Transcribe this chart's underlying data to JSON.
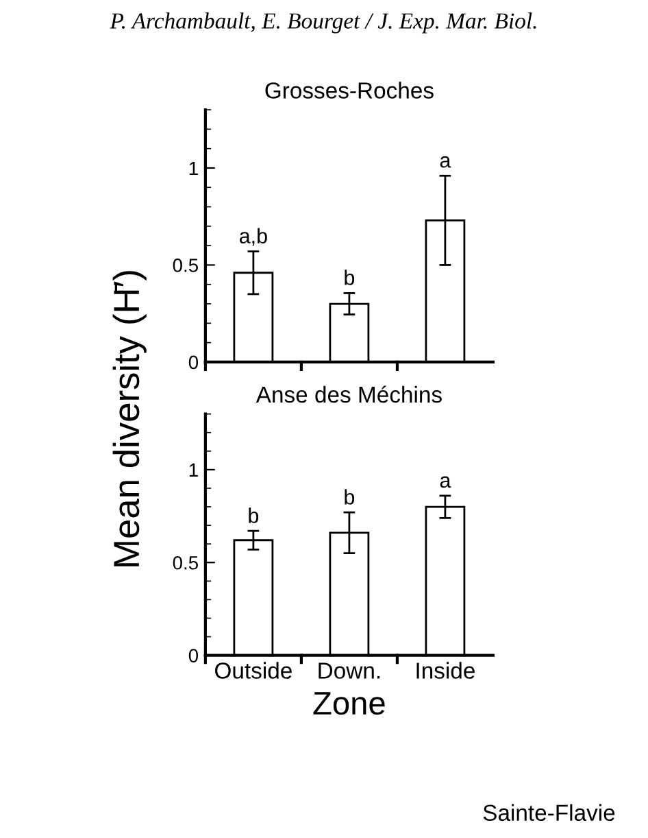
{
  "chart_data": [
    {
      "type": "bar",
      "title": "Grosses-Roches",
      "categories": [
        "Outside",
        "Down.",
        "Inside"
      ],
      "values": [
        0.46,
        0.3,
        0.73
      ],
      "errors": [
        0.11,
        0.055,
        0.23
      ],
      "color": "#ffffff",
      "ylim": [
        0,
        1.3
      ],
      "yticks": [
        0,
        0.5,
        1
      ],
      "tick_labels": "y",
      "grid": false,
      "annotations": [
        "P. Archambault, E. Bourget / J. Exp. Mar. Biol.",
        {
          "text": "a,b",
          "x": "Outside",
          "y": 0.57
        },
        {
          "text": "b",
          "x": "Down.",
          "y": 0.355
        },
        {
          "text": "a",
          "x": "Inside",
          "y": 0.96
        }
      ]
    },
    {
      "type": "bar",
      "title": "Anse des Méchins",
      "categories": [
        "Outside",
        "Down.",
        "Inside"
      ],
      "values": [
        0.62,
        0.66,
        0.8
      ],
      "errors": [
        0.05,
        0.11,
        0.06
      ],
      "color": "#ffffff",
      "ylim": [
        0,
        1.3
      ],
      "yticks": [
        0,
        0.5,
        1
      ],
      "grid": false,
      "xlabel": "Zone",
      "ylabel": "Mean diversity (H̄′)",
      "annotations": [
        "Sainte-Flavie",
        {
          "text": "b",
          "x": "Outside",
          "y": 0.67
        },
        {
          "text": "b",
          "x": "Down.",
          "y": 0.77
        },
        {
          "text": "a",
          "x": "Inside",
          "y": 0.86
        }
      ]
    }
  ]
}
